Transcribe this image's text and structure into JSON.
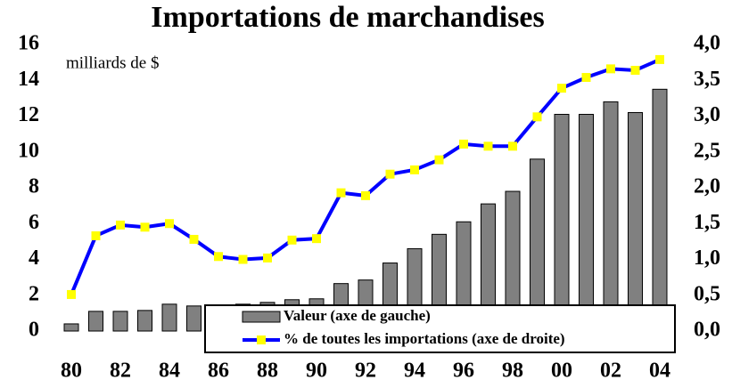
{
  "chart_data": {
    "type": "bar-line",
    "title": "Importations de marchandises",
    "y_label": "milliards de $",
    "categories": [
      "80",
      null,
      "82",
      null,
      "84",
      null,
      "86",
      null,
      "88",
      null,
      "90",
      null,
      "92",
      null,
      "94",
      null,
      "96",
      null,
      "98",
      null,
      "00",
      null,
      "02",
      null,
      "04"
    ],
    "series": [
      {
        "name": "Valeur (axe de gauche)",
        "type": "bar",
        "color": "#808080",
        "values": [
          0.4,
          1.1,
          1.1,
          1.15,
          1.5,
          1.4,
          1.4,
          1.5,
          1.6,
          1.75,
          1.8,
          2.65,
          2.85,
          3.8,
          4.6,
          5.4,
          6.1,
          7.1,
          7.8,
          9.6,
          12.1,
          12.1,
          12.8,
          12.2,
          13.5
        ]
      },
      {
        "name": "% de toutes les importations (axe de droite)",
        "type": "line",
        "axis": "y2",
        "color": "#0000ff",
        "marker_color": "#ffff00",
        "values": [
          0.51,
          1.33,
          1.48,
          1.45,
          1.5,
          1.28,
          1.04,
          1.0,
          1.02,
          1.27,
          1.29,
          1.93,
          1.89,
          2.19,
          2.25,
          2.39,
          2.61,
          2.58,
          2.58,
          2.99,
          3.39,
          3.54,
          3.66,
          3.64,
          3.79
        ]
      }
    ],
    "ylim": [
      0,
      16
    ],
    "yticks": [
      0,
      2,
      4,
      6,
      8,
      10,
      12,
      14,
      16
    ],
    "y2lim": [
      0,
      4
    ],
    "y2ticks": [
      {
        "value": 0,
        "label": "0,0"
      },
      {
        "value": 0.5,
        "label": "0,5"
      },
      {
        "value": 1,
        "label": "1,0"
      },
      {
        "value": 1.5,
        "label": "1,5"
      },
      {
        "value": 2,
        "label": "2,0"
      },
      {
        "value": 2.5,
        "label": "2,5"
      },
      {
        "value": 3,
        "label": "3,0"
      },
      {
        "value": 3.5,
        "label": "3,5"
      },
      {
        "value": 4,
        "label": "4,0"
      }
    ],
    "legend": "bottom-right"
  }
}
